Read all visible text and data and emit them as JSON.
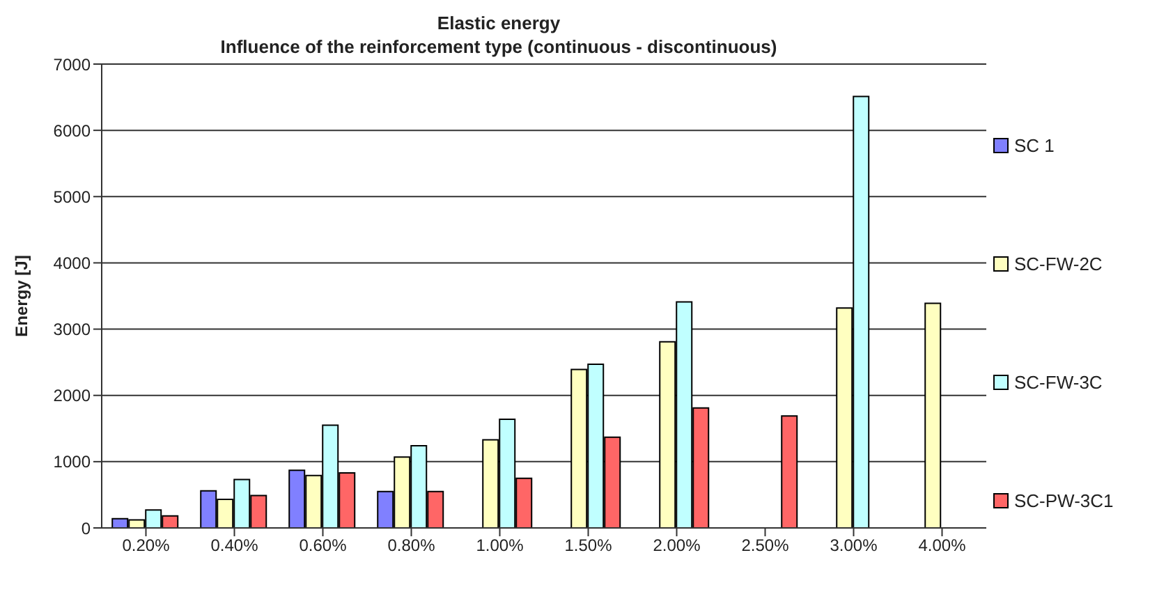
{
  "chart_data": {
    "type": "bar",
    "title": "Elastic energy",
    "subtitle": "Influence of the reinforcement type  (continuous - discontinuous)",
    "ylabel": "Energy [J]",
    "categories": [
      "0.20%",
      "0.40%",
      "0.60%",
      "0.80%",
      "1.00%",
      "1.50%",
      "2.00%",
      "2.50%",
      "3.00%",
      "4.00%"
    ],
    "series": [
      {
        "name": "SC 1",
        "color": "#8080ff",
        "values": [
          140,
          560,
          870,
          550,
          null,
          null,
          null,
          null,
          null,
          null
        ]
      },
      {
        "name": "SC-FW-2C",
        "color": "#ffffc0",
        "values": [
          120,
          430,
          790,
          1070,
          1330,
          2390,
          2810,
          null,
          3320,
          3390
        ]
      },
      {
        "name": "SC-FW-3C",
        "color": "#c0ffff",
        "values": [
          270,
          730,
          1550,
          1240,
          1640,
          2470,
          3410,
          null,
          6510,
          null
        ]
      },
      {
        "name": "SC-PW-3C1",
        "color": "#ff6666",
        "values": [
          180,
          490,
          830,
          550,
          750,
          1370,
          1810,
          1690,
          null,
          null
        ]
      }
    ],
    "ylim": [
      0,
      7000
    ],
    "yticks": [
      0,
      1000,
      2000,
      3000,
      4000,
      5000,
      6000,
      7000
    ],
    "grid": "y",
    "legend": "right"
  }
}
